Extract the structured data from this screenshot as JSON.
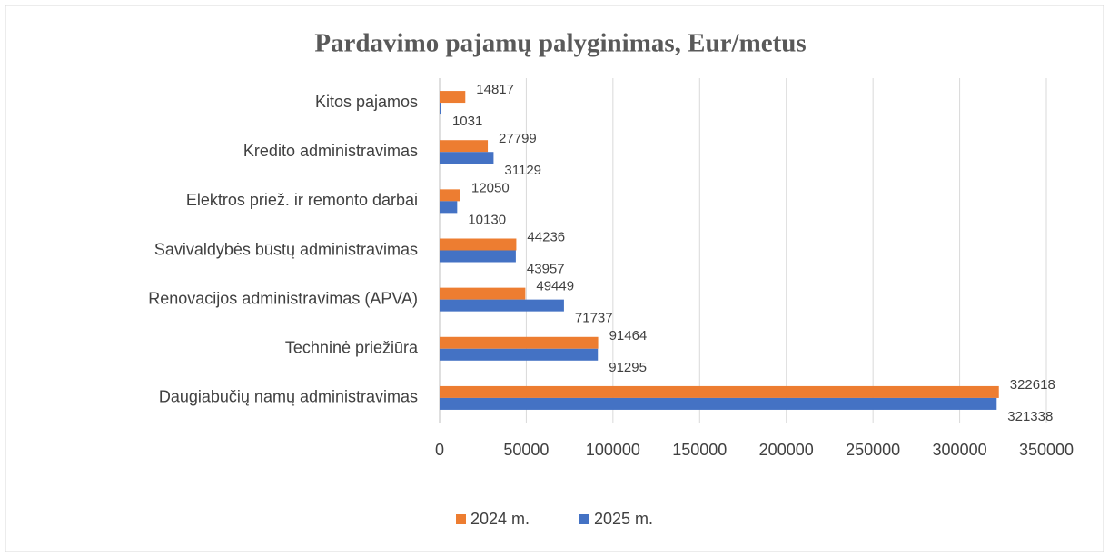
{
  "chart_data": {
    "type": "bar",
    "orientation": "horizontal",
    "title": "Pardavimo pajamų palyginimas, Eur/metus",
    "categories": [
      "Kitos pajamos",
      "Kredito administravimas",
      "Elektros priež. ir remonto darbai",
      "Savivaldybės būstų administravimas",
      "Renovacijos administravimas (APVA)",
      "Techninė priežiūra",
      "Daugiabučių namų administravimas"
    ],
    "series": [
      {
        "name": "2024 m.",
        "color": "#ed7d31",
        "values": [
          14817,
          27799,
          12050,
          44236,
          49449,
          91464,
          322618
        ]
      },
      {
        "name": "2025 m.",
        "color": "#4472c4",
        "values": [
          1031,
          31129,
          10130,
          43957,
          71737,
          91295,
          321338
        ]
      }
    ],
    "xlim": [
      0,
      350000
    ],
    "xticks": [
      0,
      50000,
      100000,
      150000,
      200000,
      250000,
      300000,
      350000
    ],
    "grid": true,
    "legend": "bottom"
  }
}
